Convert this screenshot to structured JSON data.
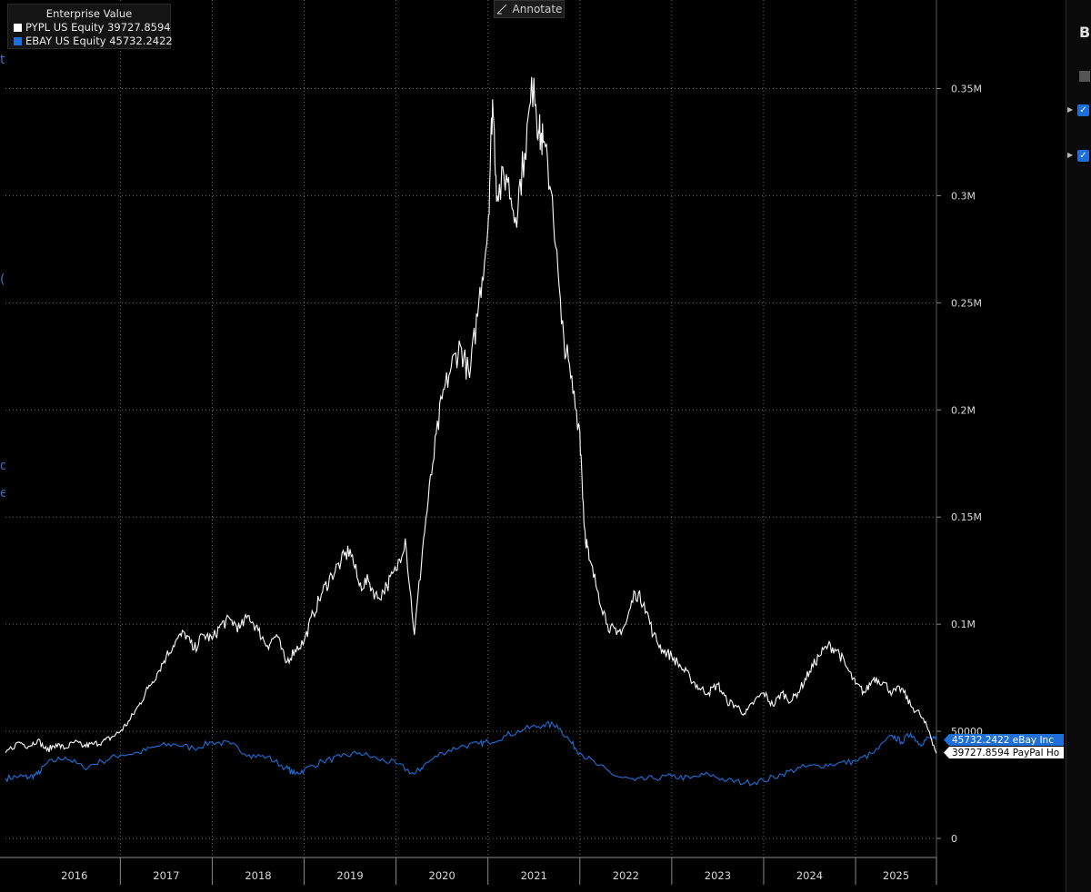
{
  "legend": {
    "title": "Enterprise Value",
    "items": [
      {
        "label": "PYPL US Equity 39727.8594",
        "color": "#ffffff"
      },
      {
        "label": "EBAY US Equity 45732.2422",
        "color": "#1e6fd9"
      }
    ]
  },
  "toolbar": {
    "annotate_label": "Annotate"
  },
  "side_panel": {
    "title": "B"
  },
  "chart_data": {
    "type": "line",
    "title": "Enterprise Value",
    "xlabel": "",
    "ylabel": "",
    "x_range": [
      2015.75,
      2025.88
    ],
    "ylim": [
      -5000,
      390000
    ],
    "y_ticks": [
      0,
      50000,
      100000,
      150000,
      200000,
      250000,
      300000,
      350000
    ],
    "y_tick_labels": [
      "0",
      "50000",
      "0.1M",
      "0.15M",
      "0.2M",
      "0.25M",
      "0.3M",
      "0.35M"
    ],
    "x_tick_labels": [
      "2016",
      "2017",
      "2018",
      "2019",
      "2020",
      "2021",
      "2022",
      "2023",
      "2024",
      "2025"
    ],
    "grid": true,
    "series": [
      {
        "name": "PYPL US Equity",
        "color": "#ffffff",
        "last_value": 39727.8594,
        "end_label": "39727.8594 PayPal Ho",
        "points": [
          [
            2015.75,
            40000
          ],
          [
            2015.9,
            45000
          ],
          [
            2016.0,
            43000
          ],
          [
            2016.1,
            46000
          ],
          [
            2016.2,
            41000
          ],
          [
            2016.3,
            44000
          ],
          [
            2016.4,
            42000
          ],
          [
            2016.5,
            45000
          ],
          [
            2016.6,
            43000
          ],
          [
            2016.7,
            44000
          ],
          [
            2016.8,
            45000
          ],
          [
            2016.9,
            47000
          ],
          [
            2017.0,
            50000
          ],
          [
            2017.1,
            55000
          ],
          [
            2017.2,
            62000
          ],
          [
            2017.3,
            70000
          ],
          [
            2017.4,
            77000
          ],
          [
            2017.5,
            85000
          ],
          [
            2017.6,
            92000
          ],
          [
            2017.7,
            96000
          ],
          [
            2017.8,
            88000
          ],
          [
            2017.9,
            95000
          ],
          [
            2018.0,
            93000
          ],
          [
            2018.1,
            100000
          ],
          [
            2018.2,
            102000
          ],
          [
            2018.3,
            98000
          ],
          [
            2018.4,
            104000
          ],
          [
            2018.5,
            97000
          ],
          [
            2018.6,
            90000
          ],
          [
            2018.7,
            95000
          ],
          [
            2018.8,
            82000
          ],
          [
            2018.9,
            88000
          ],
          [
            2019.0,
            92000
          ],
          [
            2019.1,
            105000
          ],
          [
            2019.2,
            115000
          ],
          [
            2019.3,
            123000
          ],
          [
            2019.4,
            129000
          ],
          [
            2019.5,
            135000
          ],
          [
            2019.6,
            118000
          ],
          [
            2019.7,
            120000
          ],
          [
            2019.8,
            112000
          ],
          [
            2019.9,
            118000
          ],
          [
            2020.0,
            125000
          ],
          [
            2020.1,
            140000
          ],
          [
            2020.2,
            95000
          ],
          [
            2020.3,
            140000
          ],
          [
            2020.4,
            175000
          ],
          [
            2020.5,
            205000
          ],
          [
            2020.6,
            220000
          ],
          [
            2020.7,
            230000
          ],
          [
            2020.8,
            215000
          ],
          [
            2020.9,
            250000
          ],
          [
            2021.0,
            285000
          ],
          [
            2021.05,
            345000
          ],
          [
            2021.1,
            300000
          ],
          [
            2021.2,
            310000
          ],
          [
            2021.3,
            290000
          ],
          [
            2021.4,
            320000
          ],
          [
            2021.5,
            355000
          ],
          [
            2021.55,
            330000
          ],
          [
            2021.6,
            325000
          ],
          [
            2021.7,
            300000
          ],
          [
            2021.8,
            240000
          ],
          [
            2021.9,
            215000
          ],
          [
            2022.0,
            190000
          ],
          [
            2022.05,
            145000
          ],
          [
            2022.1,
            130000
          ],
          [
            2022.2,
            115000
          ],
          [
            2022.3,
            100000
          ],
          [
            2022.4,
            95000
          ],
          [
            2022.5,
            100000
          ],
          [
            2022.6,
            115000
          ],
          [
            2022.7,
            110000
          ],
          [
            2022.8,
            95000
          ],
          [
            2022.9,
            88000
          ],
          [
            2023.0,
            85000
          ],
          [
            2023.1,
            80000
          ],
          [
            2023.2,
            75000
          ],
          [
            2023.3,
            70000
          ],
          [
            2023.4,
            68000
          ],
          [
            2023.5,
            72000
          ],
          [
            2023.6,
            64000
          ],
          [
            2023.7,
            62000
          ],
          [
            2023.8,
            58000
          ],
          [
            2023.9,
            64000
          ],
          [
            2024.0,
            68000
          ],
          [
            2024.1,
            62000
          ],
          [
            2024.2,
            68000
          ],
          [
            2024.3,
            64000
          ],
          [
            2024.4,
            70000
          ],
          [
            2024.5,
            78000
          ],
          [
            2024.6,
            85000
          ],
          [
            2024.7,
            90000
          ],
          [
            2024.8,
            88000
          ],
          [
            2024.9,
            80000
          ],
          [
            2025.0,
            72000
          ],
          [
            2025.1,
            68000
          ],
          [
            2025.2,
            75000
          ],
          [
            2025.3,
            73000
          ],
          [
            2025.4,
            68000
          ],
          [
            2025.5,
            70000
          ],
          [
            2025.6,
            62000
          ],
          [
            2025.7,
            58000
          ],
          [
            2025.8,
            50000
          ],
          [
            2025.88,
            39728
          ]
        ]
      },
      {
        "name": "EBAY US Equity",
        "color": "#1e6fd9",
        "last_value": 45732.2422,
        "end_label": "45732.2422 eBay Inc",
        "points": [
          [
            2015.75,
            28000
          ],
          [
            2015.9,
            29000
          ],
          [
            2016.0,
            28500
          ],
          [
            2016.1,
            30000
          ],
          [
            2016.2,
            35000
          ],
          [
            2016.4,
            38000
          ],
          [
            2016.6,
            33000
          ],
          [
            2016.8,
            36000
          ],
          [
            2017.0,
            39000
          ],
          [
            2017.2,
            40000
          ],
          [
            2017.4,
            43000
          ],
          [
            2017.6,
            44000
          ],
          [
            2017.8,
            42000
          ],
          [
            2018.0,
            45000
          ],
          [
            2018.2,
            44000
          ],
          [
            2018.4,
            39000
          ],
          [
            2018.6,
            38000
          ],
          [
            2018.8,
            33000
          ],
          [
            2018.9,
            30000
          ],
          [
            2019.0,
            32000
          ],
          [
            2019.2,
            36000
          ],
          [
            2019.4,
            38000
          ],
          [
            2019.6,
            40000
          ],
          [
            2019.8,
            37000
          ],
          [
            2020.0,
            35000
          ],
          [
            2020.2,
            30000
          ],
          [
            2020.3,
            34000
          ],
          [
            2020.5,
            40000
          ],
          [
            2020.7,
            43000
          ],
          [
            2020.9,
            44000
          ],
          [
            2021.0,
            45000
          ],
          [
            2021.2,
            48000
          ],
          [
            2021.4,
            51000
          ],
          [
            2021.6,
            53000
          ],
          [
            2021.75,
            53000
          ],
          [
            2021.9,
            45000
          ],
          [
            2022.0,
            40000
          ],
          [
            2022.2,
            34000
          ],
          [
            2022.4,
            29000
          ],
          [
            2022.6,
            27000
          ],
          [
            2022.8,
            28000
          ],
          [
            2023.0,
            29000
          ],
          [
            2023.2,
            28000
          ],
          [
            2023.4,
            30000
          ],
          [
            2023.6,
            27000
          ],
          [
            2023.8,
            26000
          ],
          [
            2024.0,
            27000
          ],
          [
            2024.2,
            30000
          ],
          [
            2024.4,
            33000
          ],
          [
            2024.6,
            34000
          ],
          [
            2024.8,
            35000
          ],
          [
            2025.0,
            36000
          ],
          [
            2025.2,
            40000
          ],
          [
            2025.4,
            48000
          ],
          [
            2025.5,
            45000
          ],
          [
            2025.6,
            49000
          ],
          [
            2025.7,
            44000
          ],
          [
            2025.8,
            47000
          ],
          [
            2025.88,
            45732
          ]
        ]
      }
    ]
  }
}
